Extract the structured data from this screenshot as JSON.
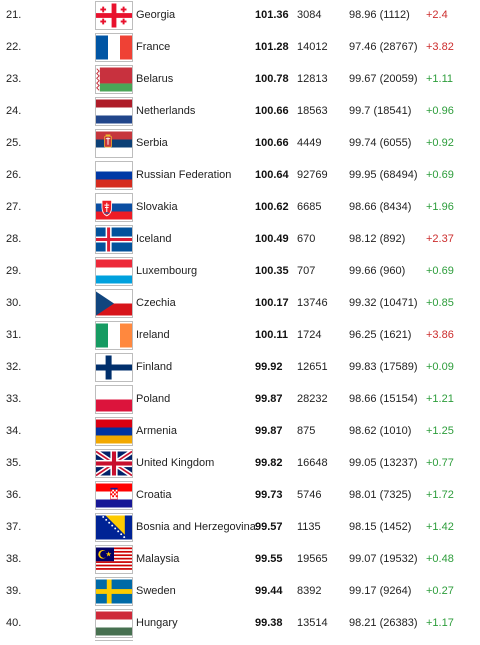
{
  "rows": [
    {
      "rank": "21.",
      "country": "Georgia",
      "score": "101.36",
      "tests": "3084",
      "prev": "98.96 (1112)",
      "change": "+2.4",
      "dir": "down",
      "flag": "georgia-flag-icon"
    },
    {
      "rank": "22.",
      "country": "France",
      "score": "101.28",
      "tests": "14012",
      "prev": "97.46 (28767)",
      "change": "+3.82",
      "dir": "down",
      "flag": "france-flag-icon"
    },
    {
      "rank": "23.",
      "country": "Belarus",
      "score": "100.78",
      "tests": "12813",
      "prev": "99.67 (20059)",
      "change": "+1.11",
      "dir": "up",
      "flag": "belarus-flag-icon"
    },
    {
      "rank": "24.",
      "country": "Netherlands",
      "score": "100.66",
      "tests": "18563",
      "prev": "99.7 (18541)",
      "change": "+0.96",
      "dir": "up",
      "flag": "netherlands-flag-icon"
    },
    {
      "rank": "25.",
      "country": "Serbia",
      "score": "100.66",
      "tests": "4449",
      "prev": "99.74 (6055)",
      "change": "+0.92",
      "dir": "up",
      "flag": "serbia-flag-icon"
    },
    {
      "rank": "26.",
      "country": "Russian Federation",
      "score": "100.64",
      "tests": "92769",
      "prev": "99.95 (68494)",
      "change": "+0.69",
      "dir": "up",
      "flag": "russia-flag-icon"
    },
    {
      "rank": "27.",
      "country": "Slovakia",
      "score": "100.62",
      "tests": "6685",
      "prev": "98.66 (8434)",
      "change": "+1.96",
      "dir": "up",
      "flag": "slovakia-flag-icon"
    },
    {
      "rank": "28.",
      "country": "Iceland",
      "score": "100.49",
      "tests": "670",
      "prev": "98.12 (892)",
      "change": "+2.37",
      "dir": "down",
      "flag": "iceland-flag-icon"
    },
    {
      "rank": "29.",
      "country": "Luxembourg",
      "score": "100.35",
      "tests": "707",
      "prev": "99.66 (960)",
      "change": "+0.69",
      "dir": "up",
      "flag": "luxembourg-flag-icon"
    },
    {
      "rank": "30.",
      "country": "Czechia",
      "score": "100.17",
      "tests": "13746",
      "prev": "99.32 (10471)",
      "change": "+0.85",
      "dir": "up",
      "flag": "czechia-flag-icon"
    },
    {
      "rank": "31.",
      "country": "Ireland",
      "score": "100.11",
      "tests": "1724",
      "prev": "96.25 (1621)",
      "change": "+3.86",
      "dir": "down",
      "flag": "ireland-flag-icon"
    },
    {
      "rank": "32.",
      "country": "Finland",
      "score": "99.92",
      "tests": "12651",
      "prev": "99.83 (17589)",
      "change": "+0.09",
      "dir": "up",
      "flag": "finland-flag-icon"
    },
    {
      "rank": "33.",
      "country": "Poland",
      "score": "99.87",
      "tests": "28232",
      "prev": "98.66 (15154)",
      "change": "+1.21",
      "dir": "up",
      "flag": "poland-flag-icon"
    },
    {
      "rank": "34.",
      "country": "Armenia",
      "score": "99.87",
      "tests": "875",
      "prev": "98.62 (1010)",
      "change": "+1.25",
      "dir": "up",
      "flag": "armenia-flag-icon"
    },
    {
      "rank": "35.",
      "country": "United Kingdom",
      "score": "99.82",
      "tests": "16648",
      "prev": "99.05 (13237)",
      "change": "+0.77",
      "dir": "up",
      "flag": "uk-flag-icon"
    },
    {
      "rank": "36.",
      "country": "Croatia",
      "score": "99.73",
      "tests": "5746",
      "prev": "98.01 (7325)",
      "change": "+1.72",
      "dir": "up",
      "flag": "croatia-flag-icon"
    },
    {
      "rank": "37.",
      "country": "Bosnia and Herzegovina",
      "score": "99.57",
      "tests": "1135",
      "prev": "98.15 (1452)",
      "change": "+1.42",
      "dir": "up",
      "flag": "bosnia-flag-icon"
    },
    {
      "rank": "38.",
      "country": "Malaysia",
      "score": "99.55",
      "tests": "19565",
      "prev": "99.07 (19532)",
      "change": "+0.48",
      "dir": "up",
      "flag": "malaysia-flag-icon"
    },
    {
      "rank": "39.",
      "country": "Sweden",
      "score": "99.44",
      "tests": "8392",
      "prev": "99.17 (9264)",
      "change": "+0.27",
      "dir": "up",
      "flag": "sweden-flag-icon"
    },
    {
      "rank": "40.",
      "country": "Hungary",
      "score": "99.38",
      "tests": "13514",
      "prev": "98.21 (26383)",
      "change": "+1.17",
      "dir": "up",
      "flag": "hungary-flag-icon"
    }
  ],
  "colors": {
    "up": "#2d9d3b",
    "down": "#cc2d2d"
  }
}
